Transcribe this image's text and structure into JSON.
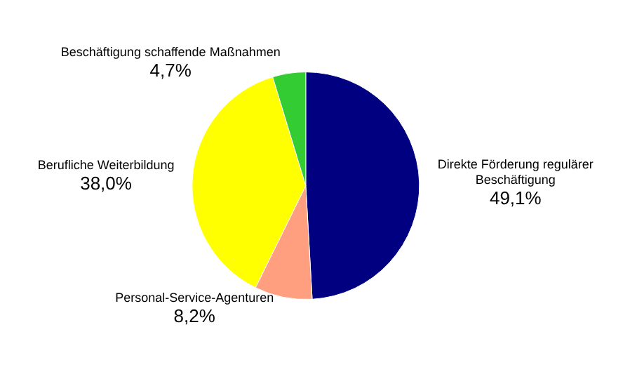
{
  "chart_data": {
    "type": "pie",
    "categories": [
      "Direkte Förderung regulärer Beschäftigung",
      "Personal-Service-Agenturen",
      "Berufliche Weiterbildung",
      "Beschäftigung schaffende Maßnahmen"
    ],
    "values": [
      49.1,
      8.2,
      38.0,
      4.7
    ],
    "colors": [
      "#000080",
      "#ff9f7f",
      "#ffff00",
      "#33cc33"
    ],
    "value_labels": [
      "49,1%",
      "8,2%",
      "38,0%",
      "4,7%"
    ],
    "legend": false
  }
}
